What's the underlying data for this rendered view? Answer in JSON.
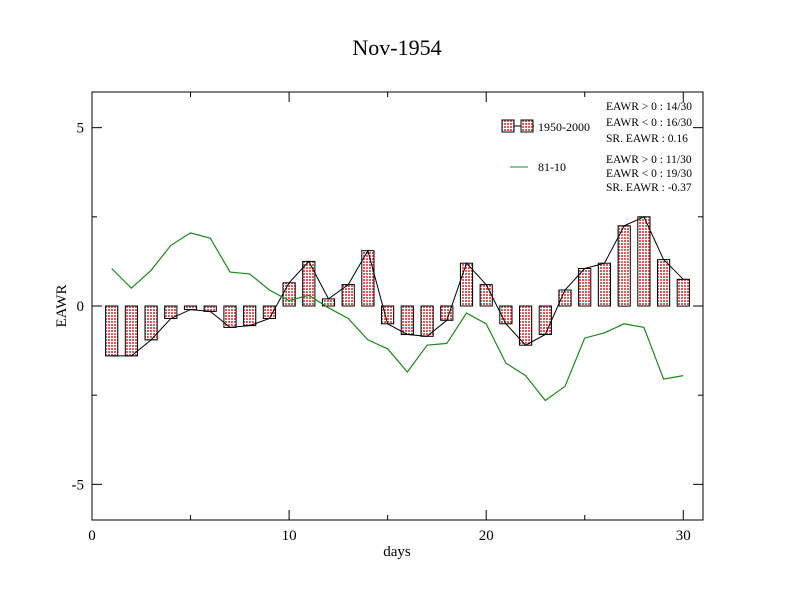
{
  "chart_data": {
    "type": "bar",
    "title": "Nov-1954",
    "xlabel": "days",
    "ylabel": "EAWR",
    "xlim": [
      0,
      31
    ],
    "ylim": [
      -6,
      6
    ],
    "xticks": [
      0,
      10,
      20,
      30
    ],
    "xtick_labels": [
      "0",
      "10",
      "20",
      "30"
    ],
    "yticks": [
      -5,
      0,
      5
    ],
    "ytick_labels": [
      "-5",
      "0",
      "5"
    ],
    "grid": false,
    "legend_position": "top-right",
    "bar_color": "#e07070",
    "line_color": "#1a8a1a",
    "x": [
      1,
      2,
      3,
      4,
      5,
      6,
      7,
      8,
      9,
      10,
      11,
      12,
      13,
      14,
      15,
      16,
      17,
      18,
      19,
      20,
      21,
      22,
      23,
      24,
      25,
      26,
      27,
      28,
      29,
      30
    ],
    "series": [
      {
        "name": "1950-2000",
        "kind": "bar",
        "values": [
          -1.4,
          -1.4,
          -0.95,
          -0.35,
          -0.1,
          -0.15,
          -0.6,
          -0.55,
          -0.35,
          0.65,
          1.25,
          0.2,
          0.6,
          1.55,
          -0.5,
          -0.8,
          -0.85,
          -0.4,
          1.2,
          0.6,
          -0.5,
          -1.1,
          -0.8,
          0.45,
          1.05,
          1.2,
          2.25,
          2.5,
          1.3,
          0.75
        ]
      },
      {
        "name": "81-10",
        "kind": "line",
        "values": [
          1.05,
          0.5,
          1.0,
          1.7,
          2.05,
          1.9,
          0.95,
          0.9,
          0.45,
          0.15,
          0.3,
          -0.05,
          -0.35,
          -0.95,
          -1.2,
          -1.85,
          -1.1,
          -1.05,
          -0.2,
          -0.5,
          -1.6,
          -1.95,
          -2.65,
          -2.25,
          -0.9,
          -0.75,
          -0.5,
          -0.6,
          -2.05,
          -1.95
        ]
      }
    ],
    "annotations": [
      [
        "EAWR > 0 : 14/30",
        "EAWR < 0 : 16/30",
        "SR. EAWR :  0.16"
      ],
      [
        "EAWR > 0 : 11/30",
        "EAWR < 0 : 19/30",
        "SR. EAWR : -0.37"
      ]
    ]
  }
}
